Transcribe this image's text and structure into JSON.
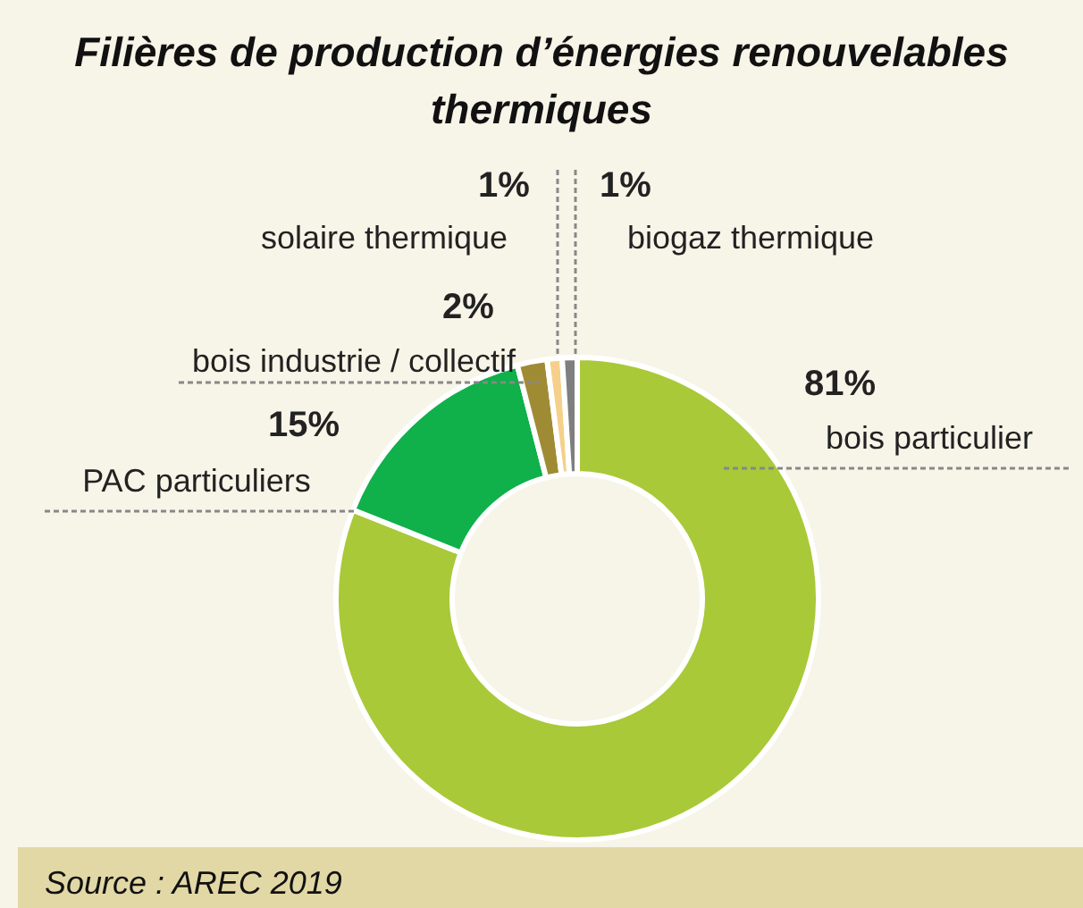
{
  "chart_data": {
    "type": "donut",
    "title": "Filières de production d’énergies renouvelables thermiques",
    "categories": [
      "bois particulier",
      "PAC particuliers",
      "bois industrie / collectif",
      "solaire thermique",
      "biogaz thermique"
    ],
    "values": [
      81,
      15,
      2,
      1,
      1
    ],
    "colors": [
      "#a9c938",
      "#10b04a",
      "#a08b35",
      "#f5d08a",
      "#7f7f7f"
    ],
    "value_labels": [
      "81%",
      "15%",
      "2%",
      "1%",
      "1%"
    ],
    "annotations": [
      "Source : AREC 2019"
    ]
  }
}
